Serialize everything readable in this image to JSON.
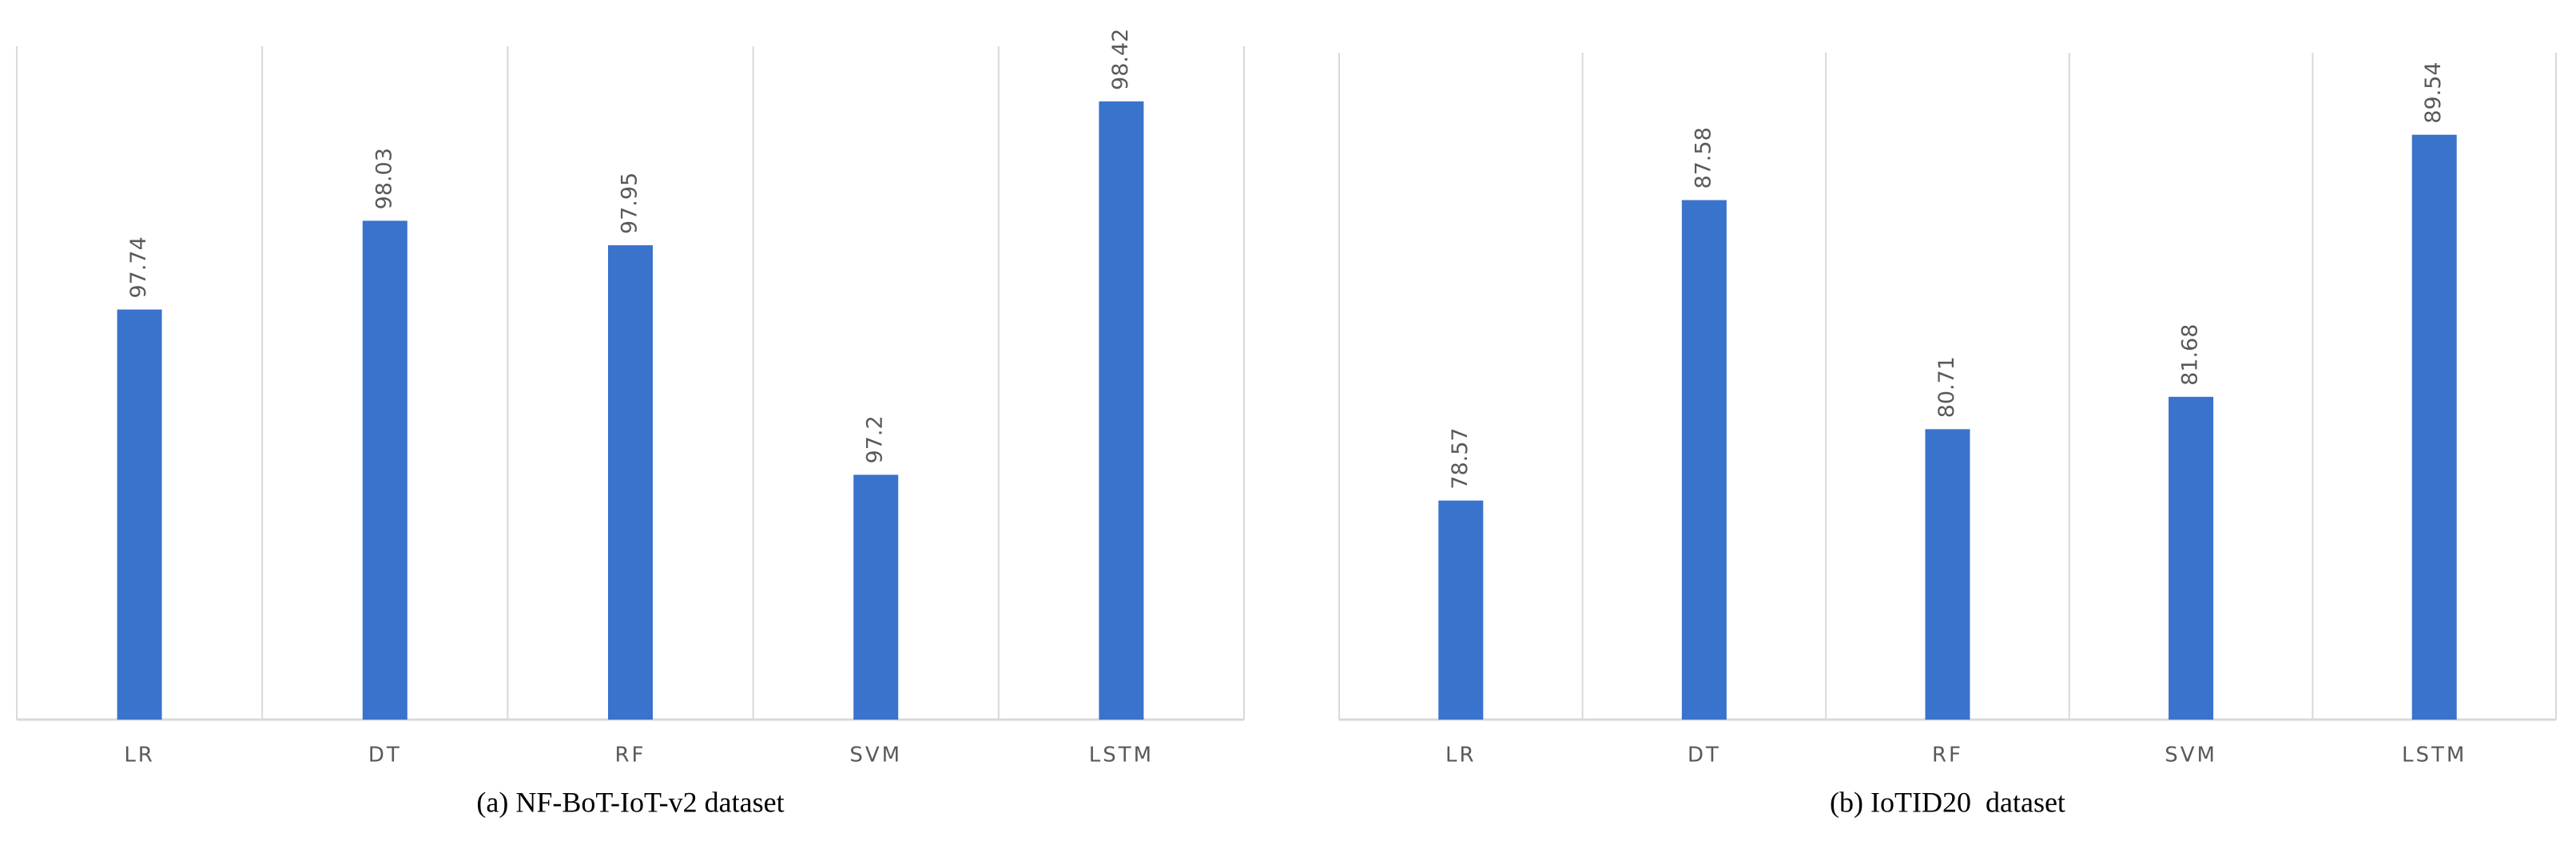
{
  "chart_data": [
    {
      "type": "bar",
      "caption": "(a) NF-BoT-IoT-v2 dataset",
      "categories": [
        "LR",
        "DT",
        "RF",
        "SVM",
        "LSTM"
      ],
      "values": [
        97.74,
        98.03,
        97.95,
        97.2,
        98.42
      ],
      "color": "#3a73cc",
      "ylim": [
        96.4,
        98.6
      ]
    },
    {
      "type": "bar",
      "caption": "(b) IoTID20  dataset",
      "categories": [
        "LR",
        "DT",
        "RF",
        "SVM",
        "LSTM"
      ],
      "values": [
        78.57,
        87.58,
        80.71,
        81.68,
        89.54
      ],
      "color": "#3a73cc",
      "ylim": [
        72,
        92
      ]
    }
  ]
}
